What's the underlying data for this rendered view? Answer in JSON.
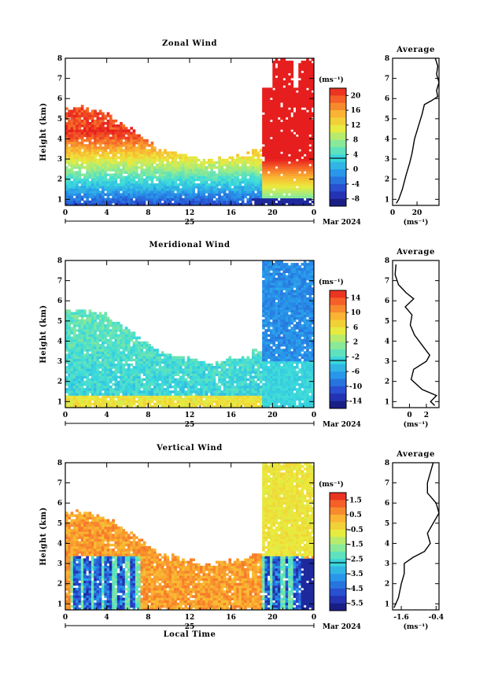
{
  "chart_data": [
    {
      "type": "heatmap",
      "title": "Zonal Wind",
      "ylabel": "Height (km)",
      "xlabel": "",
      "date_label": "25",
      "month_label": "Mar 2024",
      "x_ticks": [
        "0",
        "4",
        "8",
        "12",
        "16",
        "20",
        "0"
      ],
      "y_ticks": [
        "1",
        "2",
        "3",
        "4",
        "5",
        "6",
        "7",
        "8"
      ],
      "xlim": [
        0,
        24
      ],
      "ylim": [
        0.7,
        8
      ],
      "colorbar": {
        "unit": "(ms⁻¹)",
        "ticks": [
          "20",
          "16",
          "12",
          "8",
          "4",
          "0",
          "-4",
          "-8"
        ],
        "min": -10,
        "max": 22
      },
      "profile": {
        "title": "Average",
        "unit": "(ms⁻¹)",
        "x_ticks": [
          "0",
          "20"
        ],
        "xlim": [
          0,
          38
        ],
        "points": [
          [
            3,
            0.8
          ],
          [
            5,
            1.0
          ],
          [
            8,
            1.5
          ],
          [
            11,
            2.2
          ],
          [
            14,
            2.8
          ],
          [
            16,
            3.3
          ],
          [
            18,
            4.0
          ],
          [
            21,
            4.6
          ],
          [
            24,
            5.2
          ],
          [
            26,
            5.7
          ],
          [
            32,
            5.9
          ],
          [
            37,
            6.1
          ],
          [
            36,
            6.4
          ],
          [
            38,
            6.8
          ],
          [
            36,
            7.2
          ],
          [
            37,
            7.6
          ],
          [
            35,
            8.0
          ]
        ]
      }
    },
    {
      "type": "heatmap",
      "title": "Meridional Wind",
      "ylabel": "Height (km)",
      "xlabel": "",
      "date_label": "25",
      "month_label": "Mar 2024",
      "x_ticks": [
        "0",
        "4",
        "8",
        "12",
        "16",
        "20",
        "0"
      ],
      "y_ticks": [
        "1",
        "2",
        "3",
        "4",
        "5",
        "6",
        "7",
        "8"
      ],
      "xlim": [
        0,
        24
      ],
      "ylim": [
        0.7,
        8
      ],
      "colorbar": {
        "unit": "(ms⁻¹)",
        "ticks": [
          "14",
          "10",
          "6",
          "2",
          "-2",
          "-6",
          "-10",
          "-14"
        ],
        "min": -16,
        "max": 16
      },
      "profile": {
        "title": "Average",
        "unit": "(ms⁻¹)",
        "x_ticks": [
          "0",
          "2"
        ],
        "xlim": [
          -2,
          3.5
        ],
        "points": [
          [
            3.0,
            0.8
          ],
          [
            2.5,
            1.0
          ],
          [
            3.2,
            1.3
          ],
          [
            1.5,
            1.6
          ],
          [
            0.2,
            2.1
          ],
          [
            0.5,
            2.6
          ],
          [
            2.0,
            3.0
          ],
          [
            2.4,
            3.3
          ],
          [
            1.5,
            3.8
          ],
          [
            0.6,
            4.3
          ],
          [
            0.1,
            4.8
          ],
          [
            0.3,
            5.3
          ],
          [
            -0.5,
            5.7
          ],
          [
            0.5,
            6.1
          ],
          [
            -0.4,
            6.4
          ],
          [
            -1.3,
            6.8
          ],
          [
            -1.7,
            7.3
          ],
          [
            -1.6,
            7.8
          ]
        ]
      }
    },
    {
      "type": "heatmap",
      "title": "Vertical Wind",
      "ylabel": "Height (km)",
      "xlabel": "Local Time",
      "date_label": "25",
      "month_label": "Mar 2024",
      "x_ticks": [
        "0",
        "4",
        "8",
        "12",
        "16",
        "20",
        "0"
      ],
      "y_ticks": [
        "1",
        "2",
        "3",
        "4",
        "5",
        "6",
        "7",
        "8"
      ],
      "xlim": [
        0,
        24
      ],
      "ylim": [
        0.7,
        8
      ],
      "colorbar": {
        "unit": "(ms⁻¹)",
        "ticks": [
          "1.5",
          "0.5",
          "-0.5",
          "-1.5",
          "-2.5",
          "-3.5",
          "-4.5",
          "-5.5"
        ],
        "min": -6,
        "max": 2
      },
      "profile": {
        "title": "Average",
        "unit": "(ms⁻¹)",
        "x_ticks": [
          "-1.6",
          "-0.4"
        ],
        "xlim": [
          -1.9,
          -0.3
        ],
        "points": [
          [
            -1.85,
            0.8
          ],
          [
            -1.7,
            1.3
          ],
          [
            -1.6,
            2.0
          ],
          [
            -1.5,
            2.5
          ],
          [
            -1.5,
            3.0
          ],
          [
            -1.2,
            3.3
          ],
          [
            -0.8,
            3.6
          ],
          [
            -0.6,
            4.0
          ],
          [
            -0.7,
            4.5
          ],
          [
            -0.5,
            5.0
          ],
          [
            -0.3,
            5.5
          ],
          [
            -0.4,
            6.0
          ],
          [
            -0.7,
            6.5
          ],
          [
            -0.7,
            7.0
          ],
          [
            -0.6,
            7.5
          ],
          [
            -0.5,
            8.0
          ]
        ]
      }
    }
  ]
}
